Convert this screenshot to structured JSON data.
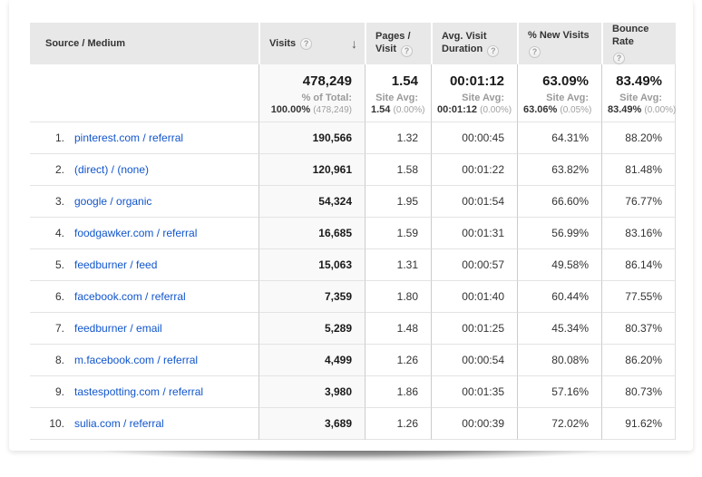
{
  "colors": {
    "header_bg": "#e8e8e8",
    "link_blue": "#1155cc",
    "sorted_column_bg": "#f9f9f9",
    "grid_line": "#cccccc",
    "row_line": "#e3e3e3",
    "subtext_gray": "#9a9a9a"
  },
  "icons": {
    "help_glyph": "?",
    "sort_desc_glyph": "↓"
  },
  "table": {
    "columns": [
      {
        "label": "Source / Medium"
      },
      {
        "label": "Visits",
        "sorted": "descending"
      },
      {
        "label": "Pages / Visit"
      },
      {
        "label": "Avg. Visit Duration"
      },
      {
        "label": "% New Visits"
      },
      {
        "label": "Bounce Rate"
      }
    ],
    "summary": {
      "visits": {
        "value": "478,249",
        "sub_label": "% of Total:",
        "sub_value": "100.00%",
        "sub_paren": "(478,249)"
      },
      "pages_visit": {
        "value": "1.54",
        "sub_label": "Site Avg:",
        "sub_value": "1.54",
        "sub_paren": "(0.00%)"
      },
      "avg_duration": {
        "value": "00:01:12",
        "sub_label": "Site Avg:",
        "sub_value": "00:01:12",
        "sub_paren": "(0.00%)"
      },
      "new_visits": {
        "value": "63.09%",
        "sub_label": "Site Avg:",
        "sub_value": "63.06%",
        "sub_paren": "(0.05%)"
      },
      "bounce_rate": {
        "value": "83.49%",
        "sub_label": "Site Avg:",
        "sub_value": "83.49%",
        "sub_paren": "(0.00%)"
      }
    },
    "rows": [
      {
        "rank": "1.",
        "source": "pinterest.com / referral",
        "visits": "190,566",
        "pages_visit": "1.32",
        "avg_duration": "00:00:45",
        "new_visits": "64.31%",
        "bounce_rate": "88.20%"
      },
      {
        "rank": "2.",
        "source": "(direct) / (none)",
        "visits": "120,961",
        "pages_visit": "1.58",
        "avg_duration": "00:01:22",
        "new_visits": "63.82%",
        "bounce_rate": "81.48%"
      },
      {
        "rank": "3.",
        "source": "google / organic",
        "visits": "54,324",
        "pages_visit": "1.95",
        "avg_duration": "00:01:54",
        "new_visits": "66.60%",
        "bounce_rate": "76.77%"
      },
      {
        "rank": "4.",
        "source": "foodgawker.com / referral",
        "visits": "16,685",
        "pages_visit": "1.59",
        "avg_duration": "00:01:31",
        "new_visits": "56.99%",
        "bounce_rate": "83.16%"
      },
      {
        "rank": "5.",
        "source": "feedburner / feed",
        "visits": "15,063",
        "pages_visit": "1.31",
        "avg_duration": "00:00:57",
        "new_visits": "49.58%",
        "bounce_rate": "86.14%"
      },
      {
        "rank": "6.",
        "source": "facebook.com / referral",
        "visits": "7,359",
        "pages_visit": "1.80",
        "avg_duration": "00:01:40",
        "new_visits": "60.44%",
        "bounce_rate": "77.55%"
      },
      {
        "rank": "7.",
        "source": "feedburner / email",
        "visits": "5,289",
        "pages_visit": "1.48",
        "avg_duration": "00:01:25",
        "new_visits": "45.34%",
        "bounce_rate": "80.37%"
      },
      {
        "rank": "8.",
        "source": "m.facebook.com / referral",
        "visits": "4,499",
        "pages_visit": "1.26",
        "avg_duration": "00:00:54",
        "new_visits": "80.08%",
        "bounce_rate": "86.20%"
      },
      {
        "rank": "9.",
        "source": "tastespotting.com / referral",
        "visits": "3,980",
        "pages_visit": "1.86",
        "avg_duration": "00:01:35",
        "new_visits": "57.16%",
        "bounce_rate": "80.73%"
      },
      {
        "rank": "10.",
        "source": "sulia.com / referral",
        "visits": "3,689",
        "pages_visit": "1.26",
        "avg_duration": "00:00:39",
        "new_visits": "72.02%",
        "bounce_rate": "91.62%"
      }
    ]
  }
}
